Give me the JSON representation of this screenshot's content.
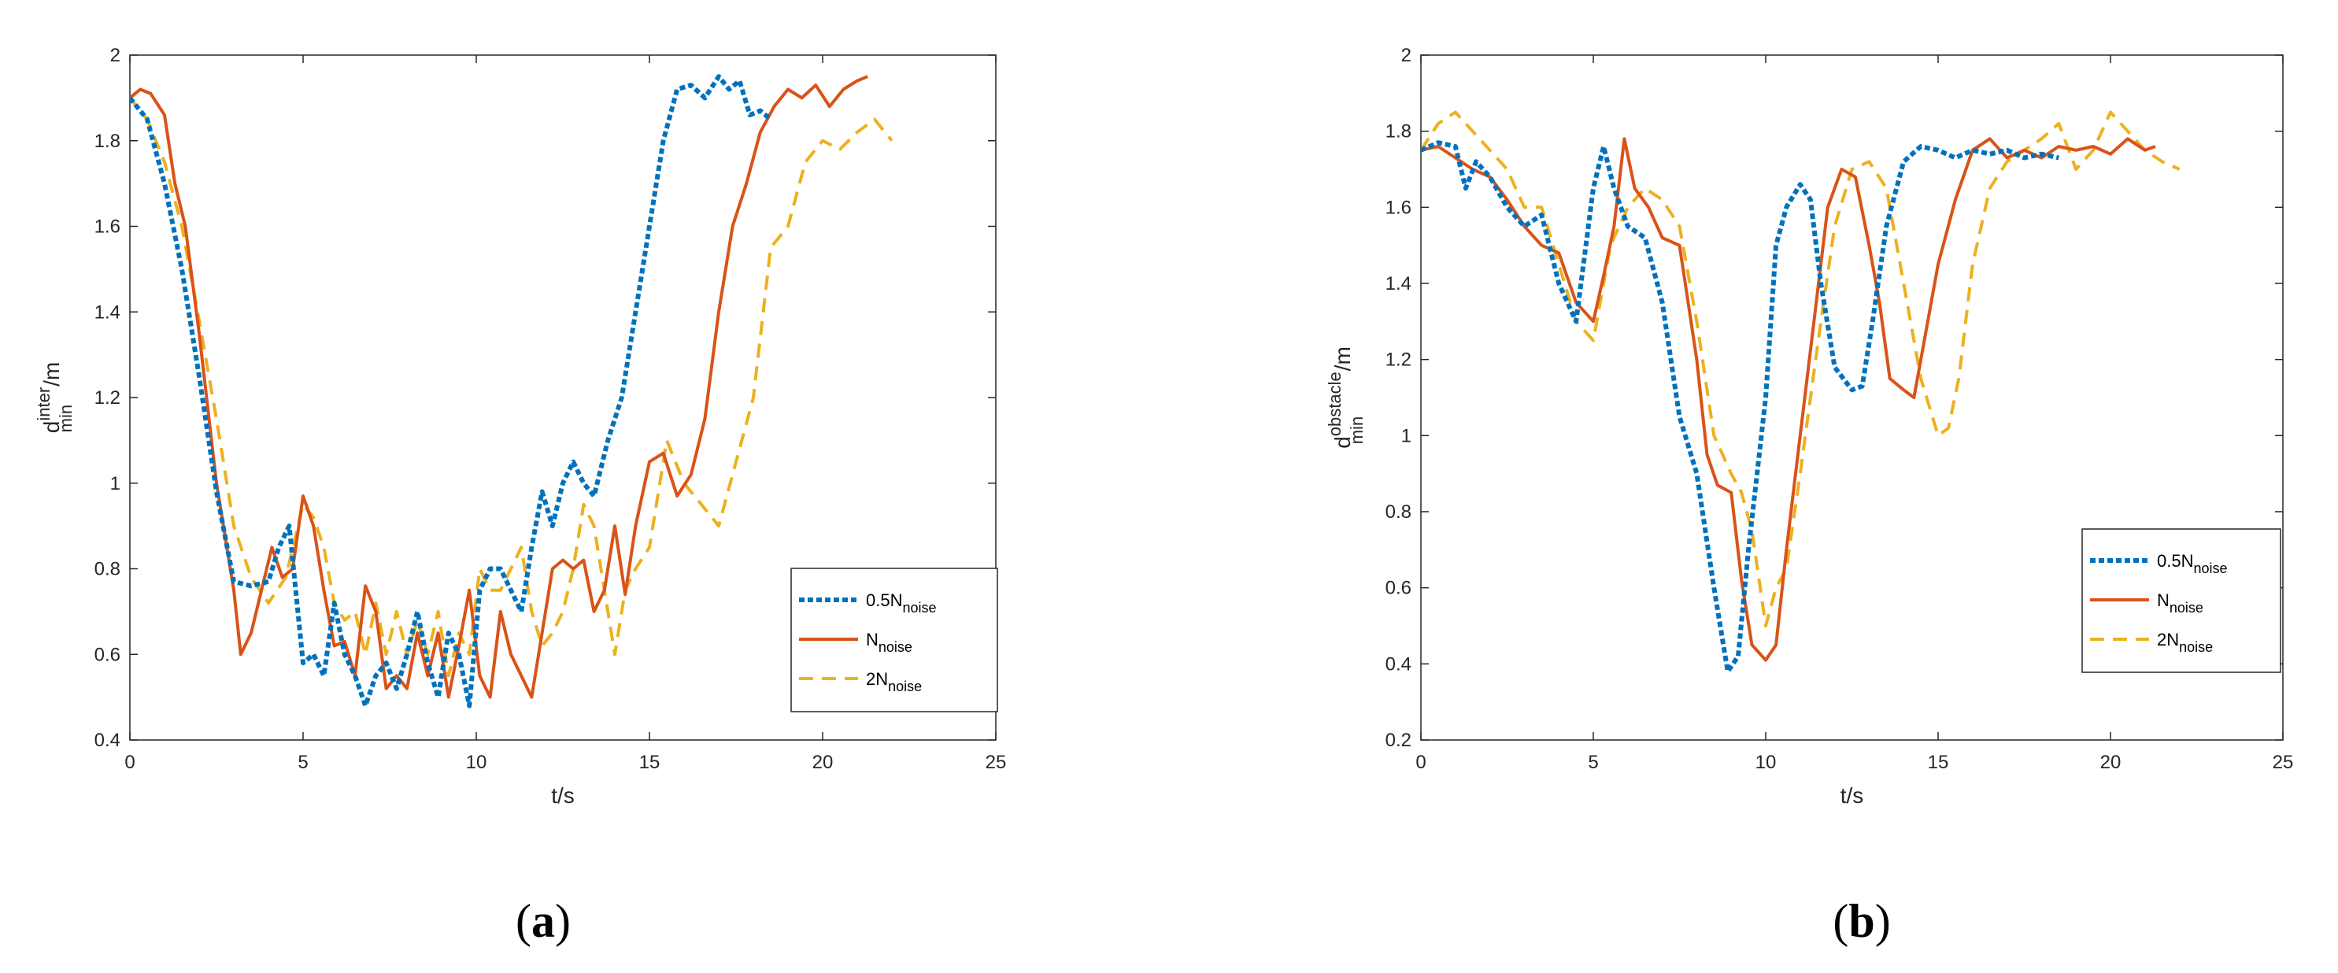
{
  "chart_data": [
    {
      "type": "line",
      "panel": "a",
      "xlabel": "t/s",
      "ylabel_main": "d",
      "ylabel_sup": "inter",
      "ylabel_sub": "min",
      "ylabel_unit": "/m",
      "xlim": [
        0,
        25
      ],
      "ylim": [
        0.4,
        2.0
      ],
      "xticks": [
        "0",
        "5",
        "10",
        "15",
        "20",
        "25"
      ],
      "yticks": [
        "0.4",
        "0.6",
        "0.8",
        "1",
        "1.2",
        "1.4",
        "1.6",
        "1.8",
        "2"
      ],
      "legend_position": "lower-right",
      "series": [
        {
          "name": "0.5N",
          "sub": "noise",
          "color": "#0072BD",
          "style": "dotted",
          "x": [
            0,
            0.5,
            1,
            1.5,
            2,
            2.5,
            3,
            3.5,
            4,
            4.3,
            4.6,
            5,
            5.3,
            5.6,
            5.9,
            6.2,
            6.5,
            6.8,
            7.1,
            7.4,
            7.7,
            8,
            8.3,
            8.6,
            8.9,
            9.2,
            9.5,
            9.8,
            10.1,
            10.4,
            10.7,
            11,
            11.3,
            11.6,
            11.9,
            12.2,
            12.5,
            12.8,
            13.1,
            13.4,
            13.8,
            14.2,
            14.6,
            15,
            15.4,
            15.8,
            16.2,
            16.6,
            17,
            17.3,
            17.6,
            17.9,
            18.2,
            18.5
          ],
          "y": [
            1.9,
            1.85,
            1.7,
            1.5,
            1.25,
            0.98,
            0.77,
            0.76,
            0.77,
            0.85,
            0.9,
            0.58,
            0.6,
            0.55,
            0.72,
            0.6,
            0.55,
            0.48,
            0.55,
            0.58,
            0.52,
            0.6,
            0.7,
            0.58,
            0.5,
            0.65,
            0.6,
            0.48,
            0.75,
            0.8,
            0.8,
            0.75,
            0.7,
            0.85,
            0.98,
            0.9,
            1.0,
            1.05,
            1.0,
            0.97,
            1.1,
            1.2,
            1.4,
            1.6,
            1.8,
            1.92,
            1.93,
            1.9,
            1.95,
            1.92,
            1.94,
            1.86,
            1.87,
            1.85
          ]
        },
        {
          "name": "N",
          "sub": "noise",
          "color": "#D95319",
          "style": "solid",
          "x": [
            0,
            0.3,
            0.6,
            1,
            1.3,
            1.6,
            2,
            2.5,
            3,
            3.2,
            3.5,
            3.8,
            4.1,
            4.4,
            4.7,
            5,
            5.3,
            5.6,
            5.9,
            6.2,
            6.5,
            6.8,
            7.1,
            7.4,
            7.7,
            8,
            8.3,
            8.6,
            8.9,
            9.2,
            9.5,
            9.8,
            10.1,
            10.4,
            10.7,
            11,
            11.3,
            11.6,
            11.9,
            12.2,
            12.5,
            12.8,
            13.1,
            13.4,
            13.7,
            14,
            14.3,
            14.6,
            15,
            15.4,
            15.8,
            16.2,
            16.6,
            17,
            17.4,
            17.8,
            18.2,
            18.6,
            19,
            19.4,
            19.8,
            20.2,
            20.6,
            21,
            21.3
          ],
          "y": [
            1.9,
            1.92,
            1.91,
            1.86,
            1.7,
            1.6,
            1.35,
            1.0,
            0.75,
            0.6,
            0.65,
            0.75,
            0.85,
            0.78,
            0.8,
            0.97,
            0.9,
            0.75,
            0.62,
            0.63,
            0.55,
            0.76,
            0.7,
            0.52,
            0.55,
            0.52,
            0.65,
            0.55,
            0.65,
            0.5,
            0.62,
            0.75,
            0.55,
            0.5,
            0.7,
            0.6,
            0.55,
            0.5,
            0.65,
            0.8,
            0.82,
            0.8,
            0.82,
            0.7,
            0.75,
            0.9,
            0.74,
            0.9,
            1.05,
            1.07,
            0.97,
            1.02,
            1.15,
            1.4,
            1.6,
            1.7,
            1.82,
            1.88,
            1.92,
            1.9,
            1.93,
            1.88,
            1.92,
            1.94,
            1.95
          ]
        },
        {
          "name": "2N",
          "sub": "noise",
          "color": "#EDB120",
          "style": "dashed",
          "x": [
            0,
            0.5,
            1,
            1.5,
            2,
            2.5,
            3,
            3.5,
            4,
            4.5,
            5,
            5.3,
            5.6,
            5.9,
            6.2,
            6.5,
            6.8,
            7.1,
            7.4,
            7.7,
            8,
            8.3,
            8.6,
            8.9,
            9.2,
            9.5,
            9.8,
            10.1,
            10.4,
            10.7,
            11,
            11.3,
            11.6,
            11.9,
            12.2,
            12.5,
            12.8,
            13.1,
            13.4,
            13.7,
            14,
            14.3,
            14.6,
            15,
            15.5,
            16,
            16.5,
            17,
            17.5,
            18,
            18.5,
            19,
            19.5,
            20,
            20.5,
            21,
            21.5,
            22
          ],
          "y": [
            1.9,
            1.85,
            1.75,
            1.6,
            1.38,
            1.15,
            0.9,
            0.78,
            0.72,
            0.78,
            0.95,
            0.92,
            0.85,
            0.72,
            0.68,
            0.7,
            0.6,
            0.72,
            0.6,
            0.7,
            0.6,
            0.68,
            0.6,
            0.7,
            0.55,
            0.65,
            0.6,
            0.8,
            0.75,
            0.75,
            0.8,
            0.85,
            0.7,
            0.62,
            0.65,
            0.7,
            0.8,
            0.95,
            0.9,
            0.75,
            0.6,
            0.75,
            0.8,
            0.85,
            1.1,
            1.0,
            0.95,
            0.9,
            1.05,
            1.2,
            1.55,
            1.6,
            1.75,
            1.8,
            1.78,
            1.82,
            1.85,
            1.8
          ]
        }
      ]
    },
    {
      "type": "line",
      "panel": "b",
      "xlabel": "t/s",
      "ylabel_main": "d",
      "ylabel_sup": "obstacle",
      "ylabel_sub": "min",
      "ylabel_unit": "/m",
      "xlim": [
        0,
        25
      ],
      "ylim": [
        0.2,
        2.0
      ],
      "xticks": [
        "0",
        "5",
        "10",
        "15",
        "20",
        "25"
      ],
      "yticks": [
        "0.2",
        "0.4",
        "0.6",
        "0.8",
        "1",
        "1.2",
        "1.4",
        "1.6",
        "1.8",
        "2"
      ],
      "legend_position": "center-right",
      "series": [
        {
          "name": "0.5N",
          "sub": "noise",
          "color": "#0072BD",
          "style": "dotted",
          "x": [
            0,
            0.5,
            1,
            1.3,
            1.6,
            2,
            2.5,
            3,
            3.5,
            4,
            4.5,
            5,
            5.3,
            5.6,
            6,
            6.5,
            7,
            7.5,
            8,
            8.5,
            8.9,
            9.2,
            9.5,
            10,
            10.3,
            10.6,
            11,
            11.3,
            11.6,
            12,
            12.5,
            12.8,
            13.1,
            13.5,
            14,
            14.5,
            15,
            15.5,
            16,
            16.5,
            17,
            17.5,
            18,
            18.5
          ],
          "y": [
            1.75,
            1.77,
            1.76,
            1.65,
            1.72,
            1.68,
            1.6,
            1.55,
            1.58,
            1.4,
            1.3,
            1.65,
            1.76,
            1.65,
            1.55,
            1.52,
            1.35,
            1.05,
            0.9,
            0.6,
            0.38,
            0.42,
            0.7,
            1.1,
            1.5,
            1.6,
            1.66,
            1.62,
            1.4,
            1.18,
            1.12,
            1.13,
            1.3,
            1.55,
            1.72,
            1.76,
            1.75,
            1.73,
            1.75,
            1.74,
            1.75,
            1.73,
            1.74,
            1.73
          ]
        },
        {
          "name": "N",
          "sub": "noise",
          "color": "#D95319",
          "style": "solid",
          "x": [
            0,
            0.5,
            1,
            1.5,
            2,
            2.5,
            3,
            3.5,
            4,
            4.5,
            5,
            5.3,
            5.6,
            5.9,
            6.2,
            6.6,
            7,
            7.5,
            8,
            8.3,
            8.6,
            9,
            9.3,
            9.6,
            10,
            10.3,
            10.6,
            11,
            11.4,
            11.8,
            12.2,
            12.6,
            13,
            13.3,
            13.6,
            14,
            14.3,
            14.6,
            15,
            15.5,
            16,
            16.5,
            17,
            17.5,
            18,
            18.5,
            19,
            19.5,
            20,
            20.5,
            21,
            21.3
          ],
          "y": [
            1.75,
            1.76,
            1.73,
            1.7,
            1.68,
            1.62,
            1.55,
            1.5,
            1.48,
            1.35,
            1.3,
            1.42,
            1.55,
            1.78,
            1.65,
            1.6,
            1.52,
            1.5,
            1.2,
            0.95,
            0.87,
            0.85,
            0.62,
            0.45,
            0.41,
            0.45,
            0.7,
            1.0,
            1.3,
            1.6,
            1.7,
            1.68,
            1.5,
            1.35,
            1.15,
            1.12,
            1.1,
            1.25,
            1.45,
            1.62,
            1.75,
            1.78,
            1.73,
            1.75,
            1.73,
            1.76,
            1.75,
            1.76,
            1.74,
            1.78,
            1.75,
            1.76
          ]
        },
        {
          "name": "2N",
          "sub": "noise",
          "color": "#EDB120",
          "style": "dashed",
          "x": [
            0,
            0.5,
            1,
            1.5,
            2,
            2.5,
            3,
            3.5,
            4,
            4.5,
            5,
            5.5,
            6,
            6.5,
            7,
            7.5,
            8,
            8.5,
            9,
            9.3,
            9.6,
            10,
            10.3,
            10.6,
            11,
            11.3,
            11.6,
            12,
            12.5,
            13,
            13.5,
            14,
            14.5,
            15,
            15.3,
            15.6,
            16,
            16.5,
            17,
            17.5,
            18,
            18.5,
            19,
            19.5,
            20,
            20.5,
            21,
            21.5,
            22
          ],
          "y": [
            1.75,
            1.82,
            1.85,
            1.8,
            1.75,
            1.7,
            1.6,
            1.6,
            1.45,
            1.3,
            1.25,
            1.5,
            1.6,
            1.65,
            1.62,
            1.55,
            1.3,
            1.0,
            0.9,
            0.85,
            0.75,
            0.5,
            0.6,
            0.65,
            0.9,
            1.1,
            1.3,
            1.55,
            1.7,
            1.72,
            1.65,
            1.4,
            1.15,
            1.0,
            1.02,
            1.15,
            1.45,
            1.65,
            1.72,
            1.75,
            1.78,
            1.82,
            1.7,
            1.75,
            1.85,
            1.8,
            1.75,
            1.72,
            1.7
          ]
        }
      ]
    }
  ],
  "captions": [
    "a",
    "b"
  ]
}
